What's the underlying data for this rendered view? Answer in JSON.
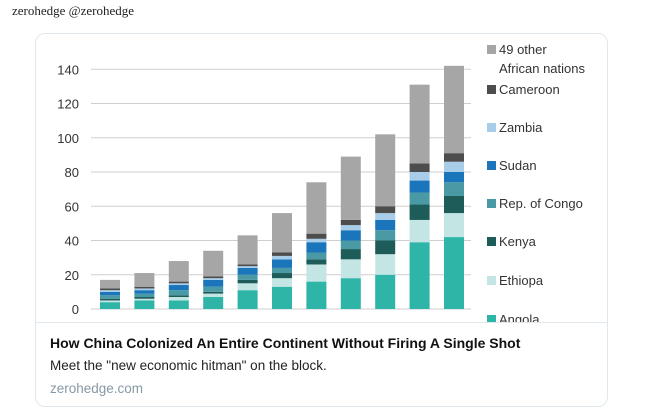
{
  "tweet": {
    "author_line": "zerohedge @zerohedge"
  },
  "card": {
    "title": "How China Colonized An Entire Continent Without Firing A Single Shot",
    "description": "Meet the \"new economic hitman\" on the block.",
    "domain": "zerohedge.com"
  },
  "chart_data": {
    "type": "bar",
    "stacked": true,
    "ylim": [
      0,
      160
    ],
    "yticks": [
      0,
      20,
      40,
      60,
      80,
      100,
      120,
      140
    ],
    "grid": true,
    "legend_position": "right",
    "categories": [
      "",
      "",
      "",
      "",
      "",
      "",
      "",
      "",
      "",
      "",
      ""
    ],
    "series": [
      {
        "name": "Angola",
        "color": "#2fb5a8",
        "values": [
          4,
          5,
          5,
          7,
          11,
          13,
          16,
          18,
          20,
          39,
          42
        ]
      },
      {
        "name": "Ethiopa",
        "color": "#c3e6e4",
        "values": [
          1,
          1,
          2,
          2,
          4,
          5,
          10,
          11,
          12,
          13,
          14
        ]
      },
      {
        "name": "Kenya",
        "color": "#1e5c5a",
        "values": [
          1,
          1,
          1,
          1,
          2,
          3,
          3,
          6,
          8,
          9,
          10
        ]
      },
      {
        "name": "Rep. of Congo",
        "color": "#4a9aa5",
        "values": [
          2,
          2,
          3,
          3,
          3,
          3,
          4,
          5,
          6,
          7,
          8
        ]
      },
      {
        "name": "Sudan",
        "color": "#1b75bb",
        "values": [
          2,
          2,
          3,
          4,
          4,
          5,
          6,
          6,
          6,
          7,
          6
        ]
      },
      {
        "name": "Zambia",
        "color": "#a7cde8",
        "values": [
          1,
          1,
          1,
          1,
          1,
          2,
          2,
          3,
          4,
          5,
          6
        ]
      },
      {
        "name": "Cameroon",
        "color": "#4d4d4d",
        "values": [
          1,
          1,
          1,
          1,
          1,
          2,
          3,
          3,
          4,
          5,
          5
        ]
      },
      {
        "name": "49 other African nations",
        "legend_lines": [
          "49 other",
          "African nations"
        ],
        "color": "#a6a6a6",
        "values": [
          5,
          8,
          12,
          15,
          17,
          23,
          30,
          37,
          42,
          46,
          51
        ]
      }
    ]
  }
}
